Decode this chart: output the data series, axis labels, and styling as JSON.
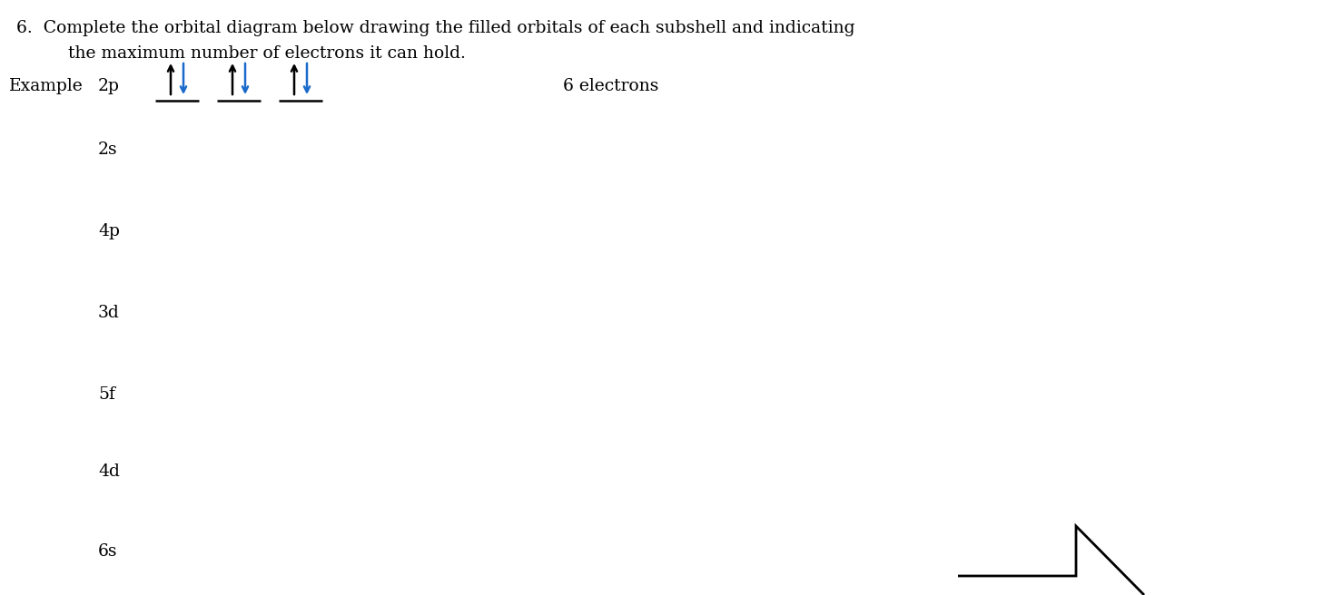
{
  "title_line1": "6.  Complete the orbital diagram below drawing the filled orbitals of each subshell and indicating",
  "title_line2": "the maximum number of electrons it can hold.",
  "bg_color": "#ffffff",
  "text_color": "#000000",
  "example_label": "Example",
  "example_subshell": "2p",
  "example_electrons_text": "6 electrons",
  "subshells": [
    "2s",
    "4p",
    "3d",
    "5f",
    "4d",
    "6s"
  ],
  "arrow_up_color": "#000000",
  "arrow_down_color": "#1a6acc",
  "title_fs": 13.5,
  "label_fs": 13.5
}
